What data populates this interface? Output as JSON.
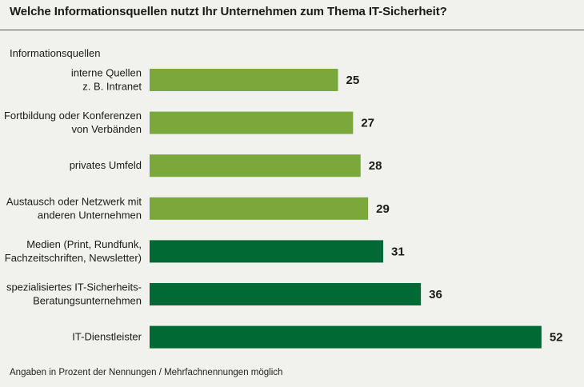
{
  "title": "Welche Informationsquellen nutzt Ihr Unternehmen zum Thema IT-Sicherheit?",
  "category_header": "Informationsquellen",
  "footnote": "Angaben in Prozent der Nennungen / Mehrfachnennungen möglich",
  "colors": {
    "light_green": "#7ba83a",
    "dark_green": "#006934",
    "background": "#f1f2ee"
  },
  "chart_data": {
    "type": "bar",
    "orientation": "horizontal",
    "title": "Welche Informationsquellen nutzt Ihr Unternehmen zum Thema IT-Sicherheit?",
    "xlabel": "",
    "ylabel": "Informationsquellen",
    "xlim": [
      0,
      52
    ],
    "categories": [
      [
        "interne Quellen",
        "z. B. Intranet"
      ],
      [
        "Fortbildung oder Konferenzen",
        "von Verbänden"
      ],
      [
        "privates Umfeld"
      ],
      [
        "Austausch oder Netzwerk mit",
        "anderen Unternehmen"
      ],
      [
        "Medien (Print, Rundfunk,",
        "Fachzeitschriften, Newsletter)"
      ],
      [
        "spezialisiertes IT-Sicherheits-",
        "Beratungsunternehmen"
      ],
      [
        "IT-Dienstleister"
      ]
    ],
    "values": [
      25,
      27,
      28,
      29,
      31,
      36,
      52
    ],
    "bar_colors": [
      "light",
      "light",
      "light",
      "light",
      "dark",
      "dark",
      "dark"
    ],
    "grid": false
  }
}
